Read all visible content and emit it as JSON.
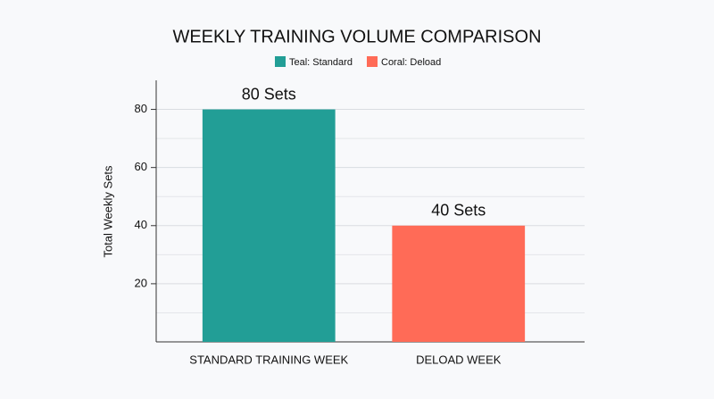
{
  "chart_data": {
    "type": "bar",
    "title": "WEEKLY TRAINING VOLUME COMPARISON",
    "y_label": "Total Weekly Sets",
    "categories": [
      "STANDARD TRAINING WEEK",
      "DELOAD WEEK"
    ],
    "series": [
      {
        "name": "Teal: Standard",
        "color": "#229e96",
        "values": [
          80,
          null
        ],
        "value_labels": [
          "80 Sets",
          null
        ]
      },
      {
        "name": "Coral: Deload",
        "color": "#ff6b57",
        "values": [
          null,
          40
        ],
        "value_labels": [
          null,
          "40 Sets"
        ]
      }
    ],
    "ylim": [
      0,
      90
    ],
    "yticks": [
      20,
      40,
      60,
      80
    ],
    "minor_yticks": [
      10,
      30,
      50,
      70
    ],
    "grid": true,
    "legend": "top"
  }
}
